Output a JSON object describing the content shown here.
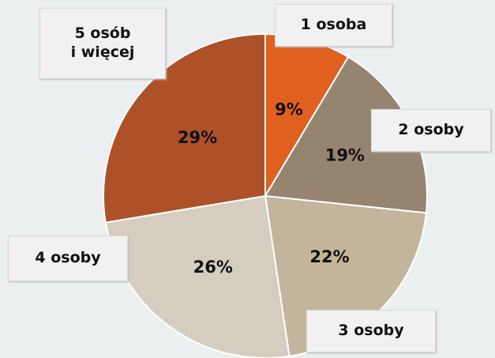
{
  "chart_data": {
    "type": "pie",
    "categories": [
      "1 osoba",
      "2 osoby",
      "3 osoby",
      "4 osoby",
      "5 osób\ni więcej"
    ],
    "values": [
      9,
      19,
      22,
      26,
      29
    ],
    "value_labels": [
      "9%",
      "19%",
      "22%",
      "26%",
      "29%"
    ],
    "colors": [
      "#e06020",
      "#958470",
      "#c3b49c",
      "#d5cdc0",
      "#ad5128"
    ]
  }
}
